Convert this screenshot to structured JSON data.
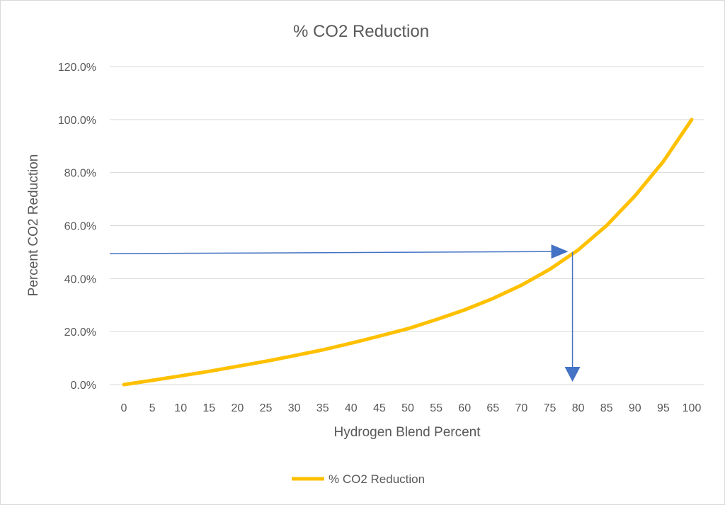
{
  "chart_data": {
    "type": "line",
    "title": "% CO2 Reduction",
    "xlabel": "Hydrogen Blend Percent",
    "ylabel": "Percent CO2 Reduction",
    "categories": [
      "0",
      "5",
      "10",
      "15",
      "20",
      "25",
      "30",
      "35",
      "40",
      "45",
      "50",
      "55",
      "60",
      "65",
      "70",
      "75",
      "80",
      "85",
      "90",
      "95",
      "100"
    ],
    "y_ticks": [
      "0.0%",
      "20.0%",
      "40.0%",
      "60.0%",
      "80.0%",
      "100.0%",
      "120.0%"
    ],
    "ylim": [
      0,
      120
    ],
    "grid": true,
    "legend_position": "bottom",
    "colors": {
      "series": "#FFC000",
      "arrow": "#4472C4",
      "grid": "#d9d9d9",
      "text": "#595959"
    },
    "series": [
      {
        "name": "% CO2 Reduction",
        "values": [
          0,
          1.6,
          3.3,
          5.0,
          6.9,
          8.8,
          10.9,
          13.1,
          15.6,
          18.3,
          21.1,
          24.5,
          28.2,
          32.5,
          37.5,
          43.5,
          50.8,
          60.0,
          71.2,
          84.2,
          100.0
        ]
      }
    ],
    "annotations": [
      {
        "type": "horizontal-arrow",
        "y": 49.4,
        "x_end": 78
      },
      {
        "type": "vertical-arrow",
        "x": 79,
        "y_start": 50,
        "y_end": 0
      }
    ]
  }
}
